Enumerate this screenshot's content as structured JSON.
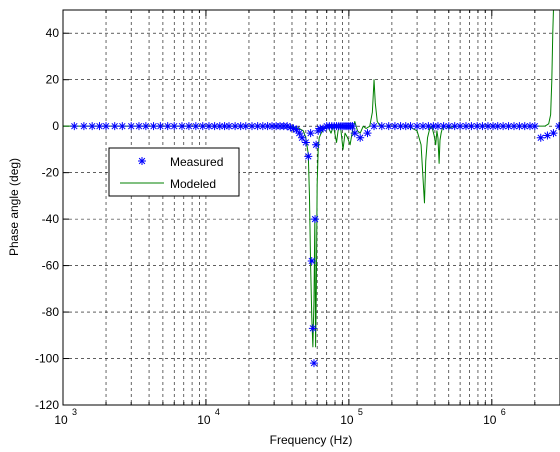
{
  "chart_data": {
    "type": "line",
    "xlabel": "Frequency (Hz)",
    "ylabel": "Phase angle (deg)",
    "xscale": "log",
    "xlim": [
      1000,
      3000000
    ],
    "ylim": [
      -120,
      50
    ],
    "grid": true,
    "grid_style": "dashed",
    "x_tick_labels": [
      {
        "base": "10",
        "exp": "3",
        "value": 1000
      },
      {
        "base": "10",
        "exp": "4",
        "value": 10000
      },
      {
        "base": "10",
        "exp": "5",
        "value": 100000
      },
      {
        "base": "10",
        "exp": "6",
        "value": 1000000
      }
    ],
    "y_ticks": [
      -120,
      -100,
      -80,
      -60,
      -40,
      -20,
      0,
      20,
      40
    ],
    "legend_position": "upper-left",
    "legend": [
      {
        "label": "Measured",
        "marker": "*",
        "color": "#0000ff"
      },
      {
        "label": "Modeled",
        "line": true,
        "color": "#008000"
      }
    ],
    "series": [
      {
        "name": "Measured",
        "style": "markers",
        "marker": "*",
        "color": "#0000ff",
        "points": [
          [
            1200,
            0
          ],
          [
            1400,
            0
          ],
          [
            1600,
            0
          ],
          [
            1800,
            0
          ],
          [
            2000,
            0
          ],
          [
            2300,
            0
          ],
          [
            2600,
            0
          ],
          [
            3000,
            0
          ],
          [
            3400,
            0
          ],
          [
            3800,
            0
          ],
          [
            4300,
            0
          ],
          [
            4800,
            0
          ],
          [
            5400,
            0
          ],
          [
            6000,
            0
          ],
          [
            6800,
            0
          ],
          [
            7600,
            0
          ],
          [
            8500,
            0
          ],
          [
            9500,
            0
          ],
          [
            10500,
            0
          ],
          [
            11500,
            0
          ],
          [
            12500,
            0
          ],
          [
            13500,
            0
          ],
          [
            14500,
            0
          ],
          [
            16000,
            0
          ],
          [
            17500,
            0
          ],
          [
            19000,
            0
          ],
          [
            21000,
            0
          ],
          [
            23000,
            0
          ],
          [
            25000,
            0
          ],
          [
            27000,
            0
          ],
          [
            29000,
            0
          ],
          [
            31000,
            0
          ],
          [
            33000,
            0
          ],
          [
            35000,
            0
          ],
          [
            37000,
            0
          ],
          [
            39000,
            -0.5
          ],
          [
            41000,
            -1
          ],
          [
            43000,
            -1.5
          ],
          [
            45000,
            -3
          ],
          [
            47000,
            -5
          ],
          [
            50000,
            -7
          ],
          [
            52000,
            -13
          ],
          [
            54000,
            -3
          ],
          [
            55000,
            -58
          ],
          [
            56000,
            -87
          ],
          [
            57000,
            -102
          ],
          [
            58000,
            -40
          ],
          [
            59000,
            -8
          ],
          [
            61000,
            -2
          ],
          [
            63000,
            -1
          ],
          [
            66000,
            -1
          ],
          [
            70000,
            0
          ],
          [
            73000,
            0
          ],
          [
            76000,
            0
          ],
          [
            79000,
            0
          ],
          [
            82000,
            0
          ],
          [
            85000,
            0
          ],
          [
            88000,
            0
          ],
          [
            91000,
            0
          ],
          [
            94000,
            0
          ],
          [
            97000,
            0
          ],
          [
            100000,
            0
          ],
          [
            103000,
            0
          ],
          [
            106000,
            0
          ],
          [
            110000,
            -3
          ],
          [
            120000,
            -5
          ],
          [
            135000,
            -3
          ],
          [
            150000,
            0
          ],
          [
            170000,
            0
          ],
          [
            190000,
            0
          ],
          [
            210000,
            0
          ],
          [
            230000,
            0
          ],
          [
            250000,
            0
          ],
          [
            270000,
            0
          ],
          [
            300000,
            0
          ],
          [
            330000,
            0
          ],
          [
            360000,
            0
          ],
          [
            390000,
            0
          ],
          [
            420000,
            0
          ],
          [
            460000,
            0
          ],
          [
            500000,
            0
          ],
          [
            550000,
            0
          ],
          [
            600000,
            0
          ],
          [
            660000,
            0
          ],
          [
            720000,
            0
          ],
          [
            790000,
            0
          ],
          [
            860000,
            0
          ],
          [
            940000,
            0
          ],
          [
            1020000,
            0
          ],
          [
            1100000,
            0
          ],
          [
            1200000,
            0
          ],
          [
            1310000,
            0
          ],
          [
            1430000,
            0
          ],
          [
            1560000,
            0
          ],
          [
            1700000,
            0
          ],
          [
            1850000,
            0
          ],
          [
            2000000,
            0
          ],
          [
            2200000,
            -5
          ],
          [
            2450000,
            -4
          ],
          [
            2700000,
            -3
          ],
          [
            2950000,
            0
          ]
        ]
      },
      {
        "name": "Modeled",
        "style": "line",
        "color": "#008000",
        "points": [
          [
            1000,
            0
          ],
          [
            40000,
            0
          ],
          [
            45000,
            -1
          ],
          [
            48000,
            -2
          ],
          [
            50000,
            -5
          ],
          [
            52000,
            -12
          ],
          [
            53000,
            -30
          ],
          [
            54000,
            -60
          ],
          [
            55000,
            -82
          ],
          [
            56000,
            -95
          ],
          [
            57000,
            -75
          ],
          [
            57800,
            -40
          ],
          [
            58500,
            -95
          ],
          [
            59200,
            -70
          ],
          [
            60000,
            -25
          ],
          [
            61000,
            -10
          ],
          [
            62000,
            -5
          ],
          [
            64000,
            -3
          ],
          [
            67000,
            -1
          ],
          [
            71000,
            0
          ],
          [
            75000,
            -3
          ],
          [
            78000,
            0
          ],
          [
            82000,
            -7
          ],
          [
            84000,
            -2
          ],
          [
            87000,
            1
          ],
          [
            91000,
            -10
          ],
          [
            94000,
            -3
          ],
          [
            98000,
            -5
          ],
          [
            102000,
            -8
          ],
          [
            106000,
            -2
          ],
          [
            110000,
            2
          ],
          [
            115000,
            -2
          ],
          [
            120000,
            -3
          ],
          [
            126000,
            0
          ],
          [
            132000,
            -1
          ],
          [
            140000,
            0
          ],
          [
            146000,
            6
          ],
          [
            150000,
            20
          ],
          [
            153000,
            10
          ],
          [
            158000,
            2
          ],
          [
            166000,
            0
          ],
          [
            200000,
            0
          ],
          [
            260000,
            0
          ],
          [
            300000,
            -2
          ],
          [
            320000,
            -8
          ],
          [
            332000,
            -25
          ],
          [
            338000,
            -33
          ],
          [
            345000,
            -15
          ],
          [
            355000,
            -5
          ],
          [
            368000,
            -1
          ],
          [
            380000,
            0
          ],
          [
            395000,
            -4
          ],
          [
            405000,
            -8
          ],
          [
            413000,
            -2
          ],
          [
            420000,
            -5
          ],
          [
            428000,
            -16
          ],
          [
            434000,
            -6
          ],
          [
            442000,
            -3
          ],
          [
            455000,
            0
          ],
          [
            480000,
            0
          ],
          [
            500000,
            -1
          ],
          [
            540000,
            0
          ],
          [
            600000,
            0
          ],
          [
            1000000,
            0
          ],
          [
            2000000,
            0
          ],
          [
            2350000,
            0
          ],
          [
            2500000,
            1
          ],
          [
            2580000,
            5
          ],
          [
            2630000,
            20
          ],
          [
            2670000,
            40
          ],
          [
            2700000,
            50
          ]
        ]
      }
    ]
  }
}
